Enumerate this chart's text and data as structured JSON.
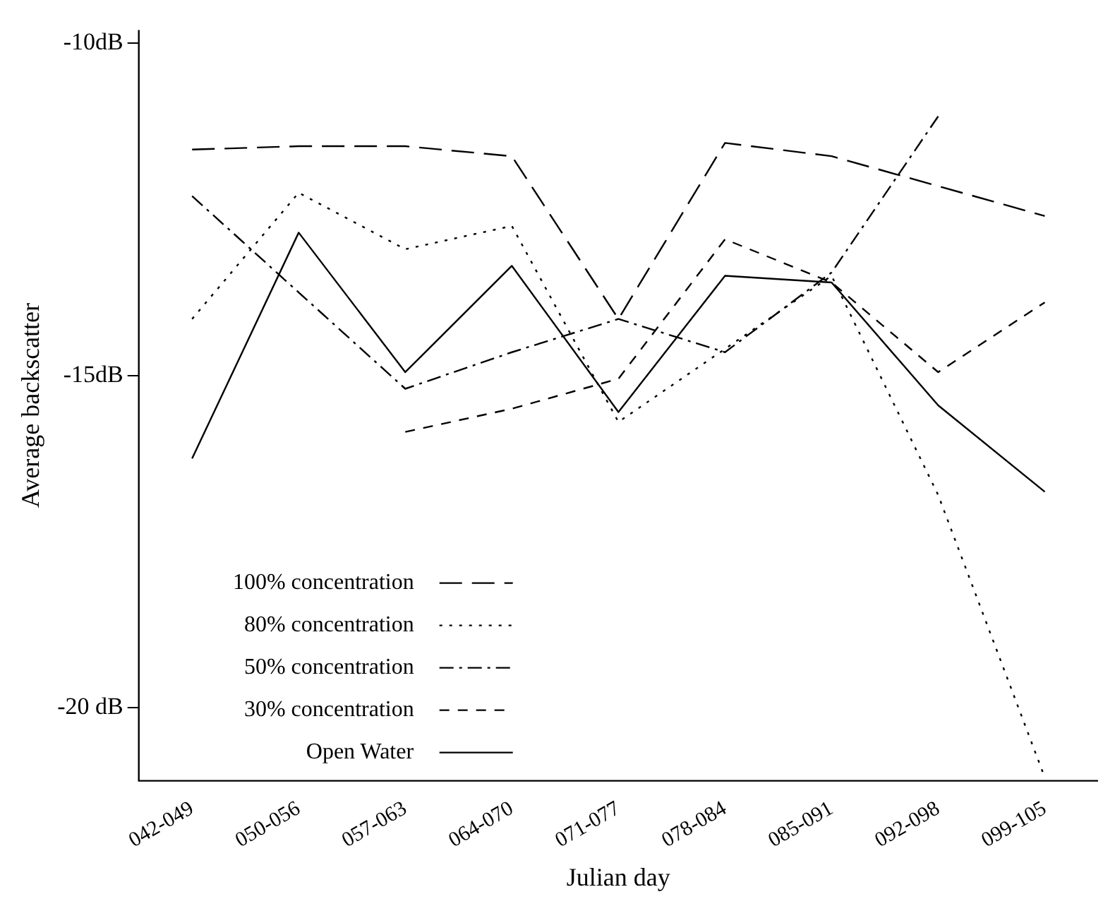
{
  "chart_data": {
    "type": "line",
    "xlabel": "Julian day",
    "ylabel": "Average backscatter",
    "categories": [
      "042-049",
      "050-056",
      "057-063",
      "064-070",
      "071-077",
      "078-084",
      "085-091",
      "092-098",
      "099-105"
    ],
    "series": [
      {
        "name": "100% concentration",
        "color": "#000000",
        "line_style": "longdash",
        "values": [
          -11.6,
          -11.55,
          -11.55,
          -11.7,
          -14.15,
          -11.5,
          -11.7,
          -12.15,
          -12.6
        ]
      },
      {
        "name": "80% concentration",
        "color": "#000000",
        "line_style": "dotted",
        "values": [
          -14.15,
          -12.25,
          -13.1,
          -12.75,
          -15.7,
          -14.6,
          -13.5,
          -16.8,
          -21.05
        ]
      },
      {
        "name": "50% concentration",
        "color": "#000000",
        "line_style": "dashdot",
        "values": [
          -12.3,
          -13.75,
          -15.2,
          -14.65,
          -14.15,
          -14.65,
          -13.45,
          -11.1,
          null
        ]
      },
      {
        "name": "30% concentration",
        "color": "#000000",
        "line_style": "dashed",
        "values": [
          null,
          null,
          -15.85,
          -15.5,
          -15.05,
          -12.95,
          -13.6,
          -14.95,
          -13.9
        ]
      },
      {
        "name": "Open Water",
        "color": "#000000",
        "line_style": "solid",
        "values": [
          -16.25,
          -12.85,
          -14.95,
          -13.35,
          -15.55,
          -13.5,
          -13.6,
          -15.45,
          -16.75
        ]
      }
    ],
    "ylim": [
      -21.1,
      -9.8
    ],
    "yticks": [
      {
        "value": -10,
        "label": "-10dB"
      },
      {
        "value": -15,
        "label": "-15dB"
      },
      {
        "value": -20,
        "label": "-20 dB"
      }
    ],
    "grid": false,
    "legend": "bottom left",
    "marker": "none"
  }
}
